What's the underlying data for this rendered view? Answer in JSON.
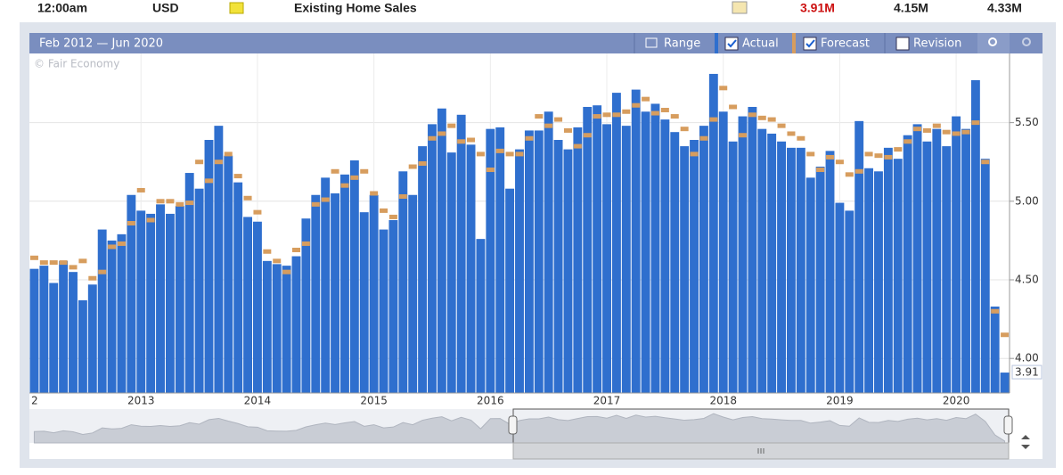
{
  "event_row": {
    "time": "12:00am",
    "currency": "USD",
    "event": "Existing Home Sales",
    "actual": "3.91M",
    "forecast": "4.15M",
    "previous": "4.33M"
  },
  "toolbar": {
    "range_label": "Feb 2012 — Jun 2020",
    "range_button": "Range",
    "revision": "Revision"
  },
  "watermark": "© Fair Economy",
  "chart_data": {
    "type": "bar",
    "grid": true,
    "categories": [
      null,
      null,
      null,
      null,
      null,
      null,
      null,
      null,
      null,
      null,
      null,
      "2013",
      null,
      null,
      null,
      null,
      null,
      null,
      null,
      null,
      null,
      null,
      null,
      "2014",
      null,
      null,
      null,
      null,
      null,
      null,
      null,
      null,
      null,
      null,
      null,
      "2015",
      null,
      null,
      null,
      null,
      null,
      null,
      null,
      null,
      null,
      null,
      null,
      "2016",
      null,
      null,
      null,
      null,
      null,
      null,
      null,
      null,
      null,
      null,
      null,
      "2017",
      null,
      null,
      null,
      null,
      null,
      null,
      null,
      null,
      null,
      null,
      null,
      "2018",
      null,
      null,
      null,
      null,
      null,
      null,
      null,
      null,
      null,
      null,
      null,
      "2019",
      null,
      null,
      null,
      null,
      null,
      null,
      null,
      null,
      null,
      null,
      null,
      "2020",
      null,
      null,
      null,
      null,
      null
    ],
    "x_edge_label": "2",
    "series": [
      {
        "name": "Actual",
        "style": "bar",
        "color": "#2f6fce",
        "values": [
          4.57,
          4.59,
          4.48,
          4.62,
          4.55,
          4.37,
          4.47,
          4.82,
          4.75,
          4.79,
          5.04,
          4.94,
          4.92,
          4.98,
          4.92,
          4.97,
          5.18,
          5.08,
          5.39,
          5.48,
          5.29,
          5.12,
          4.9,
          4.87,
          4.62,
          4.6,
          4.59,
          4.65,
          4.89,
          5.04,
          5.15,
          5.05,
          5.17,
          5.26,
          4.93,
          5.04,
          4.82,
          4.88,
          5.19,
          5.04,
          5.35,
          5.49,
          5.59,
          5.31,
          5.55,
          5.36,
          4.76,
          5.46,
          5.47,
          5.08,
          5.33,
          5.45,
          5.45,
          5.57,
          5.39,
          5.33,
          5.47,
          5.6,
          5.61,
          5.49,
          5.69,
          5.48,
          5.71,
          5.57,
          5.62,
          5.52,
          5.44,
          5.35,
          5.39,
          5.48,
          5.81,
          5.57,
          5.38,
          5.54,
          5.6,
          5.46,
          5.43,
          5.38,
          5.34,
          5.34,
          5.15,
          5.22,
          5.32,
          4.99,
          4.94,
          5.51,
          5.21,
          5.19,
          5.34,
          5.27,
          5.42,
          5.49,
          5.38,
          5.46,
          5.35,
          5.54,
          5.46,
          5.77,
          5.27,
          4.33,
          3.91
        ]
      },
      {
        "name": "Forecast",
        "style": "tick",
        "color": "#d79d5e",
        "values": [
          4.64,
          4.61,
          4.61,
          4.61,
          4.58,
          4.62,
          4.51,
          4.55,
          4.71,
          4.73,
          4.86,
          5.07,
          4.88,
          5.0,
          5.0,
          4.98,
          4.99,
          5.25,
          5.13,
          5.25,
          5.3,
          5.16,
          5.02,
          4.93,
          4.68,
          4.62,
          4.55,
          4.69,
          4.73,
          4.98,
          5.01,
          5.19,
          5.1,
          5.15,
          5.19,
          5.05,
          4.94,
          4.9,
          5.03,
          5.22,
          5.24,
          5.4,
          5.43,
          5.48,
          5.38,
          5.39,
          5.3,
          5.2,
          5.32,
          5.3,
          5.3,
          5.4,
          5.54,
          5.48,
          5.52,
          5.45,
          5.35,
          5.42,
          5.54,
          5.55,
          5.55,
          5.57,
          5.61,
          5.65,
          5.56,
          5.58,
          5.54,
          5.46,
          5.3,
          5.4,
          5.52,
          5.72,
          5.6,
          5.42,
          5.55,
          5.53,
          5.52,
          5.48,
          5.43,
          5.4,
          5.3,
          5.2,
          5.28,
          5.25,
          5.17,
          5.19,
          5.3,
          5.29,
          5.28,
          5.33,
          5.38,
          5.46,
          5.45,
          5.48,
          5.44,
          5.43,
          5.44,
          5.5,
          5.25,
          4.3,
          4.15
        ]
      }
    ],
    "ylim": [
      3.78,
      5.94
    ],
    "yticks": [
      {
        "value": 4,
        "label": "4.00"
      },
      {
        "value": 4.5,
        "label": "4.50"
      },
      {
        "value": 5,
        "label": "5.00"
      },
      {
        "value": 5.5,
        "label": "5.50"
      }
    ]
  }
}
